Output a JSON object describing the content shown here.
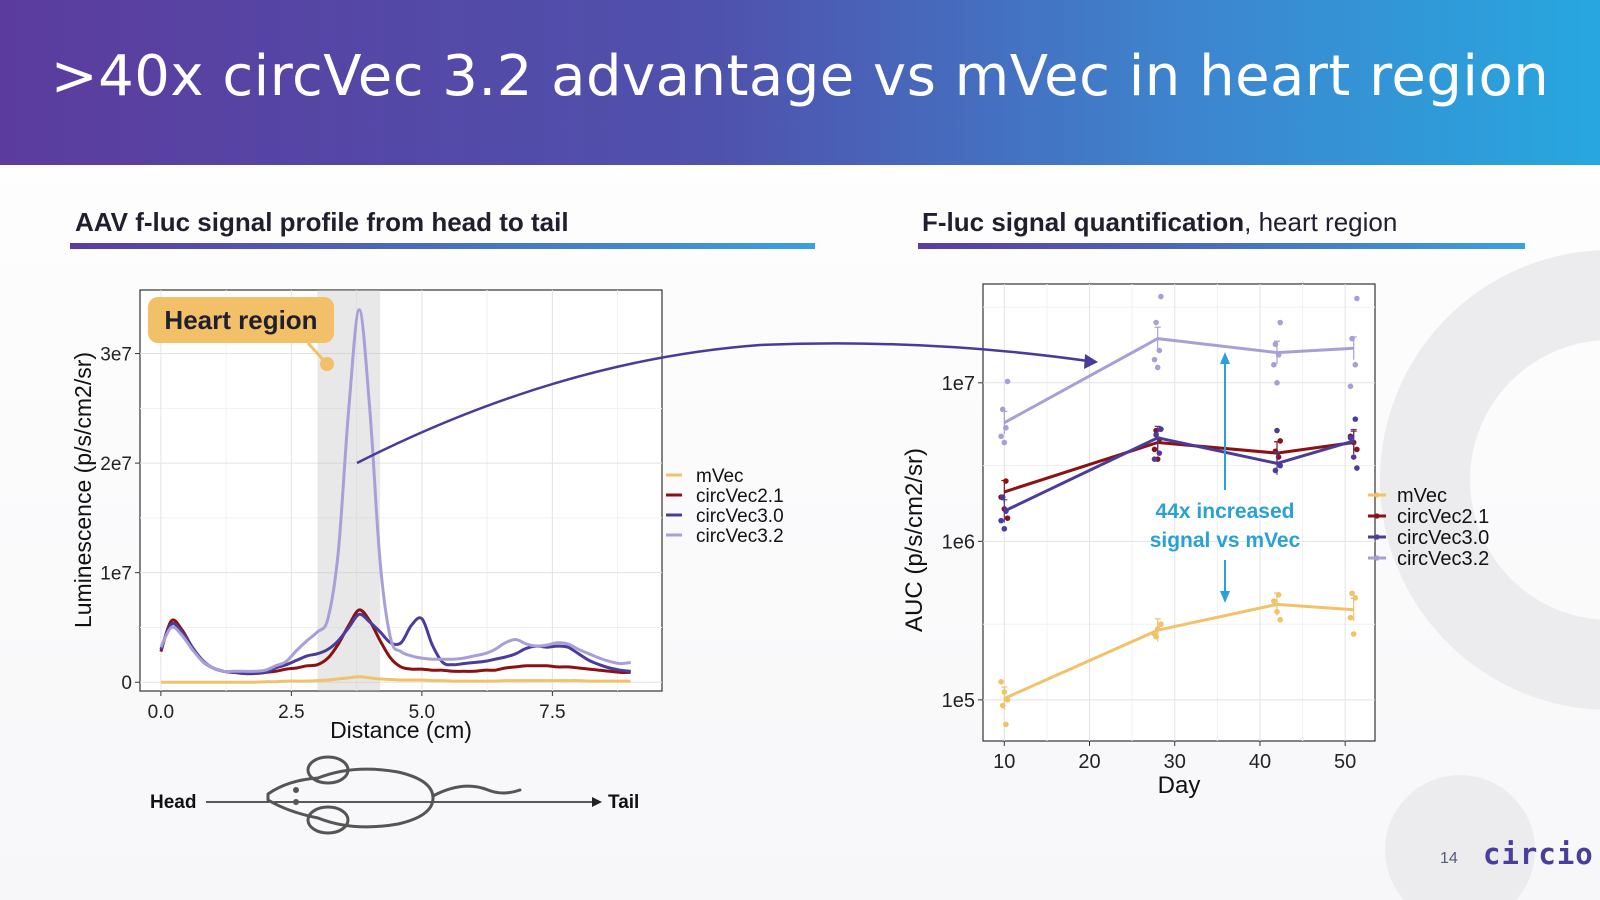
{
  "slide": {
    "title": ">40x circVec 3.2 advantage vs mVec in heart region",
    "page_number": "14",
    "logo_text": "circio",
    "accent_colors": {
      "purple": "#5b3c9e",
      "blue": "#27a7df",
      "orange": "#f1c269"
    }
  },
  "left_panel": {
    "heading_bold": "AAV f-luc signal profile from head to tail",
    "callout": "Heart region",
    "head_label": "Head",
    "tail_label": "Tail",
    "mouse_icon": "mouse-icon"
  },
  "right_panel": {
    "heading_bold": "F-luc signal quantification",
    "heading_rest": ", heart region",
    "annotation_line1": "44x increased",
    "annotation_line2": "signal vs mVec"
  },
  "chart_data": [
    {
      "type": "line",
      "title": "",
      "xlabel": "Distance (cm)",
      "ylabel": "Luminescence (p/s/cm2/sr)",
      "xlim": [
        -0.4,
        9.6
      ],
      "ylim": [
        -800000.0,
        35800000.0
      ],
      "xticks": [
        0,
        2.5,
        5,
        7.5
      ],
      "xtick_labels": [
        "0.0",
        "2.5",
        "5.0",
        "7.5"
      ],
      "yticks": [
        0,
        10000000.0,
        20000000.0,
        30000000.0
      ],
      "ytick_labels": [
        "0",
        "1e7",
        "2e7",
        "3e7"
      ],
      "shaded_region": [
        3.0,
        4.2
      ],
      "grid": true,
      "legend_position": "right",
      "x": [
        0,
        0.2,
        0.4,
        0.6,
        0.8,
        1.0,
        1.2,
        1.4,
        1.6,
        1.8,
        2.0,
        2.2,
        2.4,
        2.6,
        2.8,
        3.0,
        3.2,
        3.4,
        3.6,
        3.8,
        4.0,
        4.2,
        4.4,
        4.6,
        4.8,
        5.0,
        5.2,
        5.4,
        5.6,
        5.8,
        6.0,
        6.2,
        6.4,
        6.6,
        6.8,
        7.0,
        7.2,
        7.4,
        7.6,
        7.8,
        8.0,
        8.2,
        8.4,
        8.6,
        8.8,
        9.0
      ],
      "series": [
        {
          "name": "mVec",
          "color": "#f1c269",
          "values": [
            0.0,
            0.0,
            0.0,
            0.0,
            0.0,
            0.0,
            0.0,
            0.0,
            0.0,
            0.0,
            50000.0,
            50000.0,
            100000.0,
            100000.0,
            100000.0,
            150000.0,
            200000.0,
            300000.0,
            400000.0,
            500000.0,
            400000.0,
            300000.0,
            250000.0,
            200000.0,
            200000.0,
            200000.0,
            150000.0,
            150000.0,
            100000.0,
            100000.0,
            100000.0,
            100000.0,
            100000.0,
            150000.0,
            150000.0,
            150000.0,
            150000.0,
            150000.0,
            150000.0,
            150000.0,
            150000.0,
            100000.0,
            100000.0,
            100000.0,
            100000.0,
            100000.0
          ]
        },
        {
          "name": "circVec2.1",
          "color": "#8b1212",
          "values": [
            2800000.0,
            5600000.0,
            4800000.0,
            3200000.0,
            1900000.0,
            1300000.0,
            1000000.0,
            900000.0,
            800000.0,
            800000.0,
            900000.0,
            1000000.0,
            1200000.0,
            1300000.0,
            1500000.0,
            1600000.0,
            2200000.0,
            3500000.0,
            5200000.0,
            6600000.0,
            5600000.0,
            3800000.0,
            2200000.0,
            1400000.0,
            1200000.0,
            1200000.0,
            1100000.0,
            1100000.0,
            1000000.0,
            1000000.0,
            1000000.0,
            1100000.0,
            1100000.0,
            1300000.0,
            1400000.0,
            1500000.0,
            1500000.0,
            1500000.0,
            1400000.0,
            1400000.0,
            1300000.0,
            1200000.0,
            1100000.0,
            1000000.0,
            900000.0,
            900000.0
          ]
        },
        {
          "name": "circVec3.0",
          "color": "#4b3b9a",
          "values": [
            3000000.0,
            5300000.0,
            4600000.0,
            3200000.0,
            2000000.0,
            1300000.0,
            1000000.0,
            900000.0,
            800000.0,
            800000.0,
            900000.0,
            1300000.0,
            1600000.0,
            2000000.0,
            2400000.0,
            2600000.0,
            3000000.0,
            3800000.0,
            5000000.0,
            6200000.0,
            5500000.0,
            4600000.0,
            3600000.0,
            3600000.0,
            5200000.0,
            5800000.0,
            3400000.0,
            1800000.0,
            1600000.0,
            1700000.0,
            1800000.0,
            1900000.0,
            2100000.0,
            2300000.0,
            2600000.0,
            3100000.0,
            3300000.0,
            3200000.0,
            3300000.0,
            3200000.0,
            2600000.0,
            2000000.0,
            1600000.0,
            1300000.0,
            1100000.0,
            1000000.0
          ]
        },
        {
          "name": "circVec3.2",
          "color": "#a99fd8",
          "values": [
            3200000.0,
            5000000.0,
            4300000.0,
            3000000.0,
            1900000.0,
            1300000.0,
            1000000.0,
            1000000.0,
            1000000.0,
            1000000.0,
            1100000.0,
            1500000.0,
            1900000.0,
            2900000.0,
            3800000.0,
            4600000.0,
            5800000.0,
            12000000.0,
            25000000.0,
            34000000.0,
            25000000.0,
            11000000.0,
            4000000.0,
            2800000.0,
            2400000.0,
            2200000.0,
            2100000.0,
            2100000.0,
            2100000.0,
            2200000.0,
            2400000.0,
            2600000.0,
            3000000.0,
            3600000.0,
            3900000.0,
            3500000.0,
            3300000.0,
            3400000.0,
            3600000.0,
            3500000.0,
            3000000.0,
            2600000.0,
            2200000.0,
            1900000.0,
            1700000.0,
            1800000.0
          ]
        }
      ]
    },
    {
      "type": "line",
      "title": "",
      "xlabel": "Day",
      "ylabel": "AUC (p/s/cm2/sr)",
      "yscale": "log",
      "xlim": [
        7.5,
        53.5
      ],
      "ylim": [
        55000.0,
        42000000.0
      ],
      "xticks": [
        10,
        20,
        30,
        40,
        50
      ],
      "xtick_labels": [
        "10",
        "20",
        "30",
        "40",
        "50"
      ],
      "yticks": [
        100000.0,
        1000000.0,
        10000000.0
      ],
      "ytick_labels": [
        "1e5",
        "1e6",
        "1e7"
      ],
      "grid": true,
      "legend_position": "right",
      "x": [
        10,
        28,
        42,
        51
      ],
      "series": [
        {
          "name": "mVec",
          "color": "#f1c269",
          "means": [
            102000.0,
            275000.0,
            400000.0,
            370000.0
          ],
          "points": [
            [
              10,
              130000.0
            ],
            [
              10,
              112000.0
            ],
            [
              10,
              100000.0
            ],
            [
              10,
              92000.0
            ],
            [
              10,
              70000.0
            ],
            [
              28,
              260000.0
            ],
            [
              28,
              280000.0
            ],
            [
              28,
              300000.0
            ],
            [
              28,
              250000.0
            ],
            [
              42,
              460000.0
            ],
            [
              42,
              420000.0
            ],
            [
              42,
              360000.0
            ],
            [
              42,
              320000.0
            ],
            [
              51,
              470000.0
            ],
            [
              51,
              440000.0
            ],
            [
              51,
              330000.0
            ],
            [
              51,
              260000.0
            ]
          ]
        },
        {
          "name": "circVec2.1",
          "color": "#8b1212",
          "means": [
            2050000.0,
            4200000.0,
            3600000.0,
            4200000.0
          ],
          "points": [
            [
              10,
              2400000.0
            ],
            [
              10,
              1900000.0
            ],
            [
              10,
              1600000.0
            ],
            [
              10,
              1400000.0
            ],
            [
              28,
              5000000.0
            ],
            [
              28,
              4400000.0
            ],
            [
              28,
              3800000.0
            ],
            [
              28,
              3300000.0
            ],
            [
              42,
              4300000.0
            ],
            [
              42,
              3700000.0
            ],
            [
              42,
              3400000.0
            ],
            [
              51,
              4600000.0
            ],
            [
              51,
              4200000.0
            ],
            [
              51,
              3800000.0
            ]
          ]
        },
        {
          "name": "circVec3.0",
          "color": "#4b3b9a",
          "means": [
            1550000.0,
            4500000.0,
            3100000.0,
            4300000.0
          ],
          "points": [
            [
              10,
              1900000.0
            ],
            [
              10,
              1550000.0
            ],
            [
              10,
              1350000.0
            ],
            [
              10,
              1200000.0
            ],
            [
              28,
              5100000.0
            ],
            [
              28,
              4700000.0
            ],
            [
              28,
              3600000.0
            ],
            [
              28,
              3300000.0
            ],
            [
              42,
              5000000.0
            ],
            [
              42,
              3000000.0
            ],
            [
              42,
              2800000.0
            ],
            [
              51,
              5900000.0
            ],
            [
              51,
              4500000.0
            ],
            [
              51,
              3400000.0
            ],
            [
              51,
              2900000.0
            ]
          ]
        },
        {
          "name": "circVec3.2",
          "color": "#a99fd8",
          "means": [
            5600000.0,
            19000000.0,
            15500000.0,
            16500000.0
          ],
          "points": [
            [
              10,
              10200000.0
            ],
            [
              10,
              6800000.0
            ],
            [
              10,
              5200000.0
            ],
            [
              10,
              4600000.0
            ],
            [
              10,
              4200000.0
            ],
            [
              28,
              35000000.0
            ],
            [
              28,
              24000000.0
            ],
            [
              28,
              16000000.0
            ],
            [
              28,
              14000000.0
            ],
            [
              28,
              12500000.0
            ],
            [
              42,
              24000000.0
            ],
            [
              42,
              17500000.0
            ],
            [
              42,
              15000000.0
            ],
            [
              42,
              13000000.0
            ],
            [
              42,
              10000000.0
            ],
            [
              51,
              34000000.0
            ],
            [
              51,
              19000000.0
            ],
            [
              51,
              13000000.0
            ],
            [
              51,
              9500000.0
            ]
          ]
        }
      ]
    }
  ]
}
